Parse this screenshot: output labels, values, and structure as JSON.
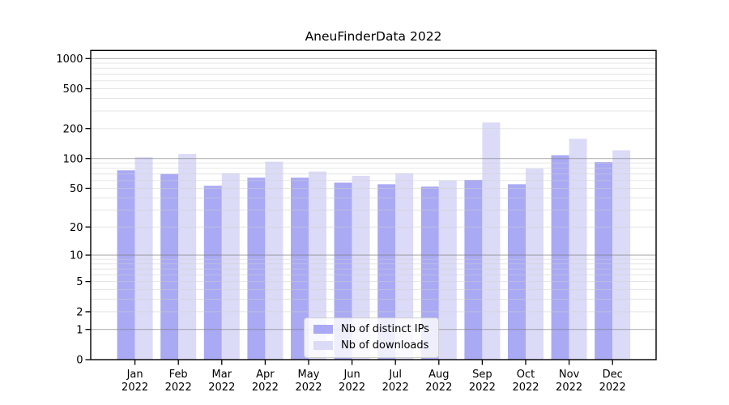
{
  "chart_data": {
    "type": "bar",
    "title": "AneuFinderData 2022",
    "categories": [
      "Jan",
      "Feb",
      "Mar",
      "Apr",
      "May",
      "Jun",
      "Jul",
      "Aug",
      "Sep",
      "Oct",
      "Nov",
      "Dec"
    ],
    "xtick_year": "2022",
    "series": [
      {
        "name": "Nb of distinct IPs",
        "color": "#a9a9f4",
        "values": [
          76,
          70,
          53,
          64,
          64,
          57,
          55,
          52,
          61,
          55,
          108,
          92
        ]
      },
      {
        "name": "Nb of downloads",
        "color": "#dbdbf7",
        "values": [
          103,
          111,
          71,
          93,
          74,
          67,
          71,
          60,
          230,
          79,
          158,
          121
        ]
      }
    ],
    "yscale": "log1p",
    "ylim": [
      0,
      1000
    ],
    "yticks": [
      0,
      1,
      2,
      5,
      10,
      20,
      50,
      100,
      200,
      500,
      1000
    ],
    "major_gridlines": [
      1,
      10,
      100,
      1000
    ],
    "minor_gridline_decades": [
      1,
      10,
      100
    ],
    "grid": true,
    "legend_position": "lower center",
    "colors": {
      "grid_major": "#808080",
      "grid_minor": "#d0d0d0",
      "axis": "#000000",
      "background": "#ffffff"
    }
  }
}
